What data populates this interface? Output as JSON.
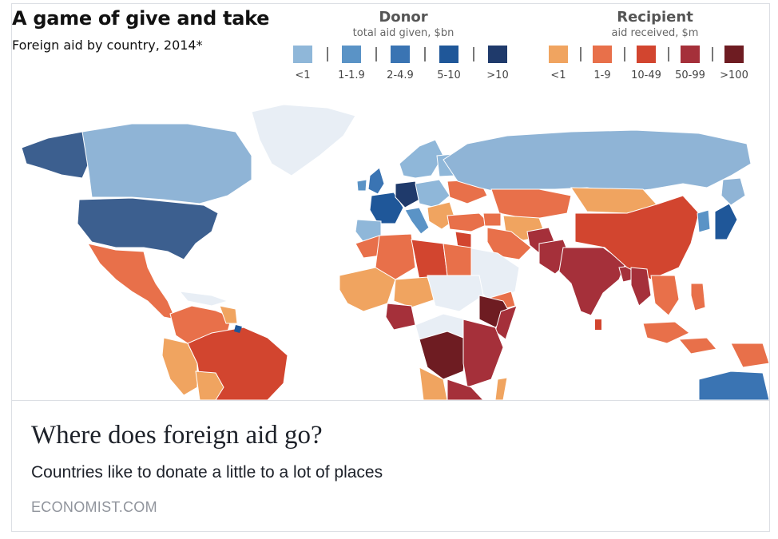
{
  "map": {
    "title": "A game of give and take",
    "subtitle": "Foreign aid by country, 2014*",
    "legend": {
      "donor": {
        "heading": "Donor",
        "subheading": "total aid given, $bn",
        "items": [
          {
            "label": "<1",
            "color": "#8fb7d9"
          },
          {
            "label": "1-1.9",
            "color": "#5a93c6"
          },
          {
            "label": "2-4.9",
            "color": "#3a74b3"
          },
          {
            "label": "5-10",
            "color": "#1f5799"
          },
          {
            "label": ">10",
            "color": "#1f3a6b"
          }
        ]
      },
      "recipient": {
        "heading": "Recipient",
        "subheading": "aid received, $m",
        "items": [
          {
            "label": "<1",
            "color": "#f0a460"
          },
          {
            "label": "1-9",
            "color": "#e8704a"
          },
          {
            "label": "10-49",
            "color": "#d2452f"
          },
          {
            "label": "50-99",
            "color": "#a5303a"
          },
          {
            "label": ">100",
            "color": "#6e1c22"
          }
        ]
      }
    },
    "no_data_color": "#e8eef5"
  },
  "article": {
    "title": "Where does foreign aid go?",
    "description": "Countries like to donate a little to a lot of places",
    "domain": "ECONOMIST.COM"
  }
}
